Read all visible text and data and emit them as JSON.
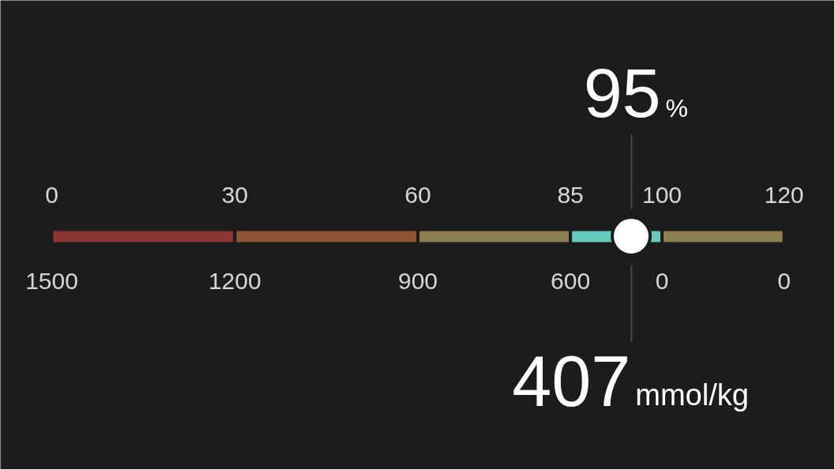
{
  "chart_data": {
    "type": "bar",
    "orientation": "horizontal",
    "stacked": true,
    "categories": [
      null
    ],
    "series": [
      {
        "color": "#8b3535",
        "values": [
          30
        ]
      },
      {
        "color": "#8f5636",
        "values": [
          30
        ]
      },
      {
        "color": "#8b7f52",
        "values": [
          25
        ]
      },
      {
        "color": "#66cbbd",
        "values": [
          15
        ]
      },
      {
        "color": "#8b7f52",
        "values": [
          20
        ]
      }
    ],
    "xlim": [
      0,
      120
    ],
    "xticks": [
      0,
      30,
      60,
      85,
      100,
      120
    ],
    "ref_lines": [
      {
        "axis": "x",
        "value": 95,
        "label": "95%",
        "color": "#484848"
      }
    ],
    "annotations": [
      "1500",
      "1200",
      "900",
      "600",
      "0",
      "0",
      "407",
      "mmol/kg"
    ]
  }
}
